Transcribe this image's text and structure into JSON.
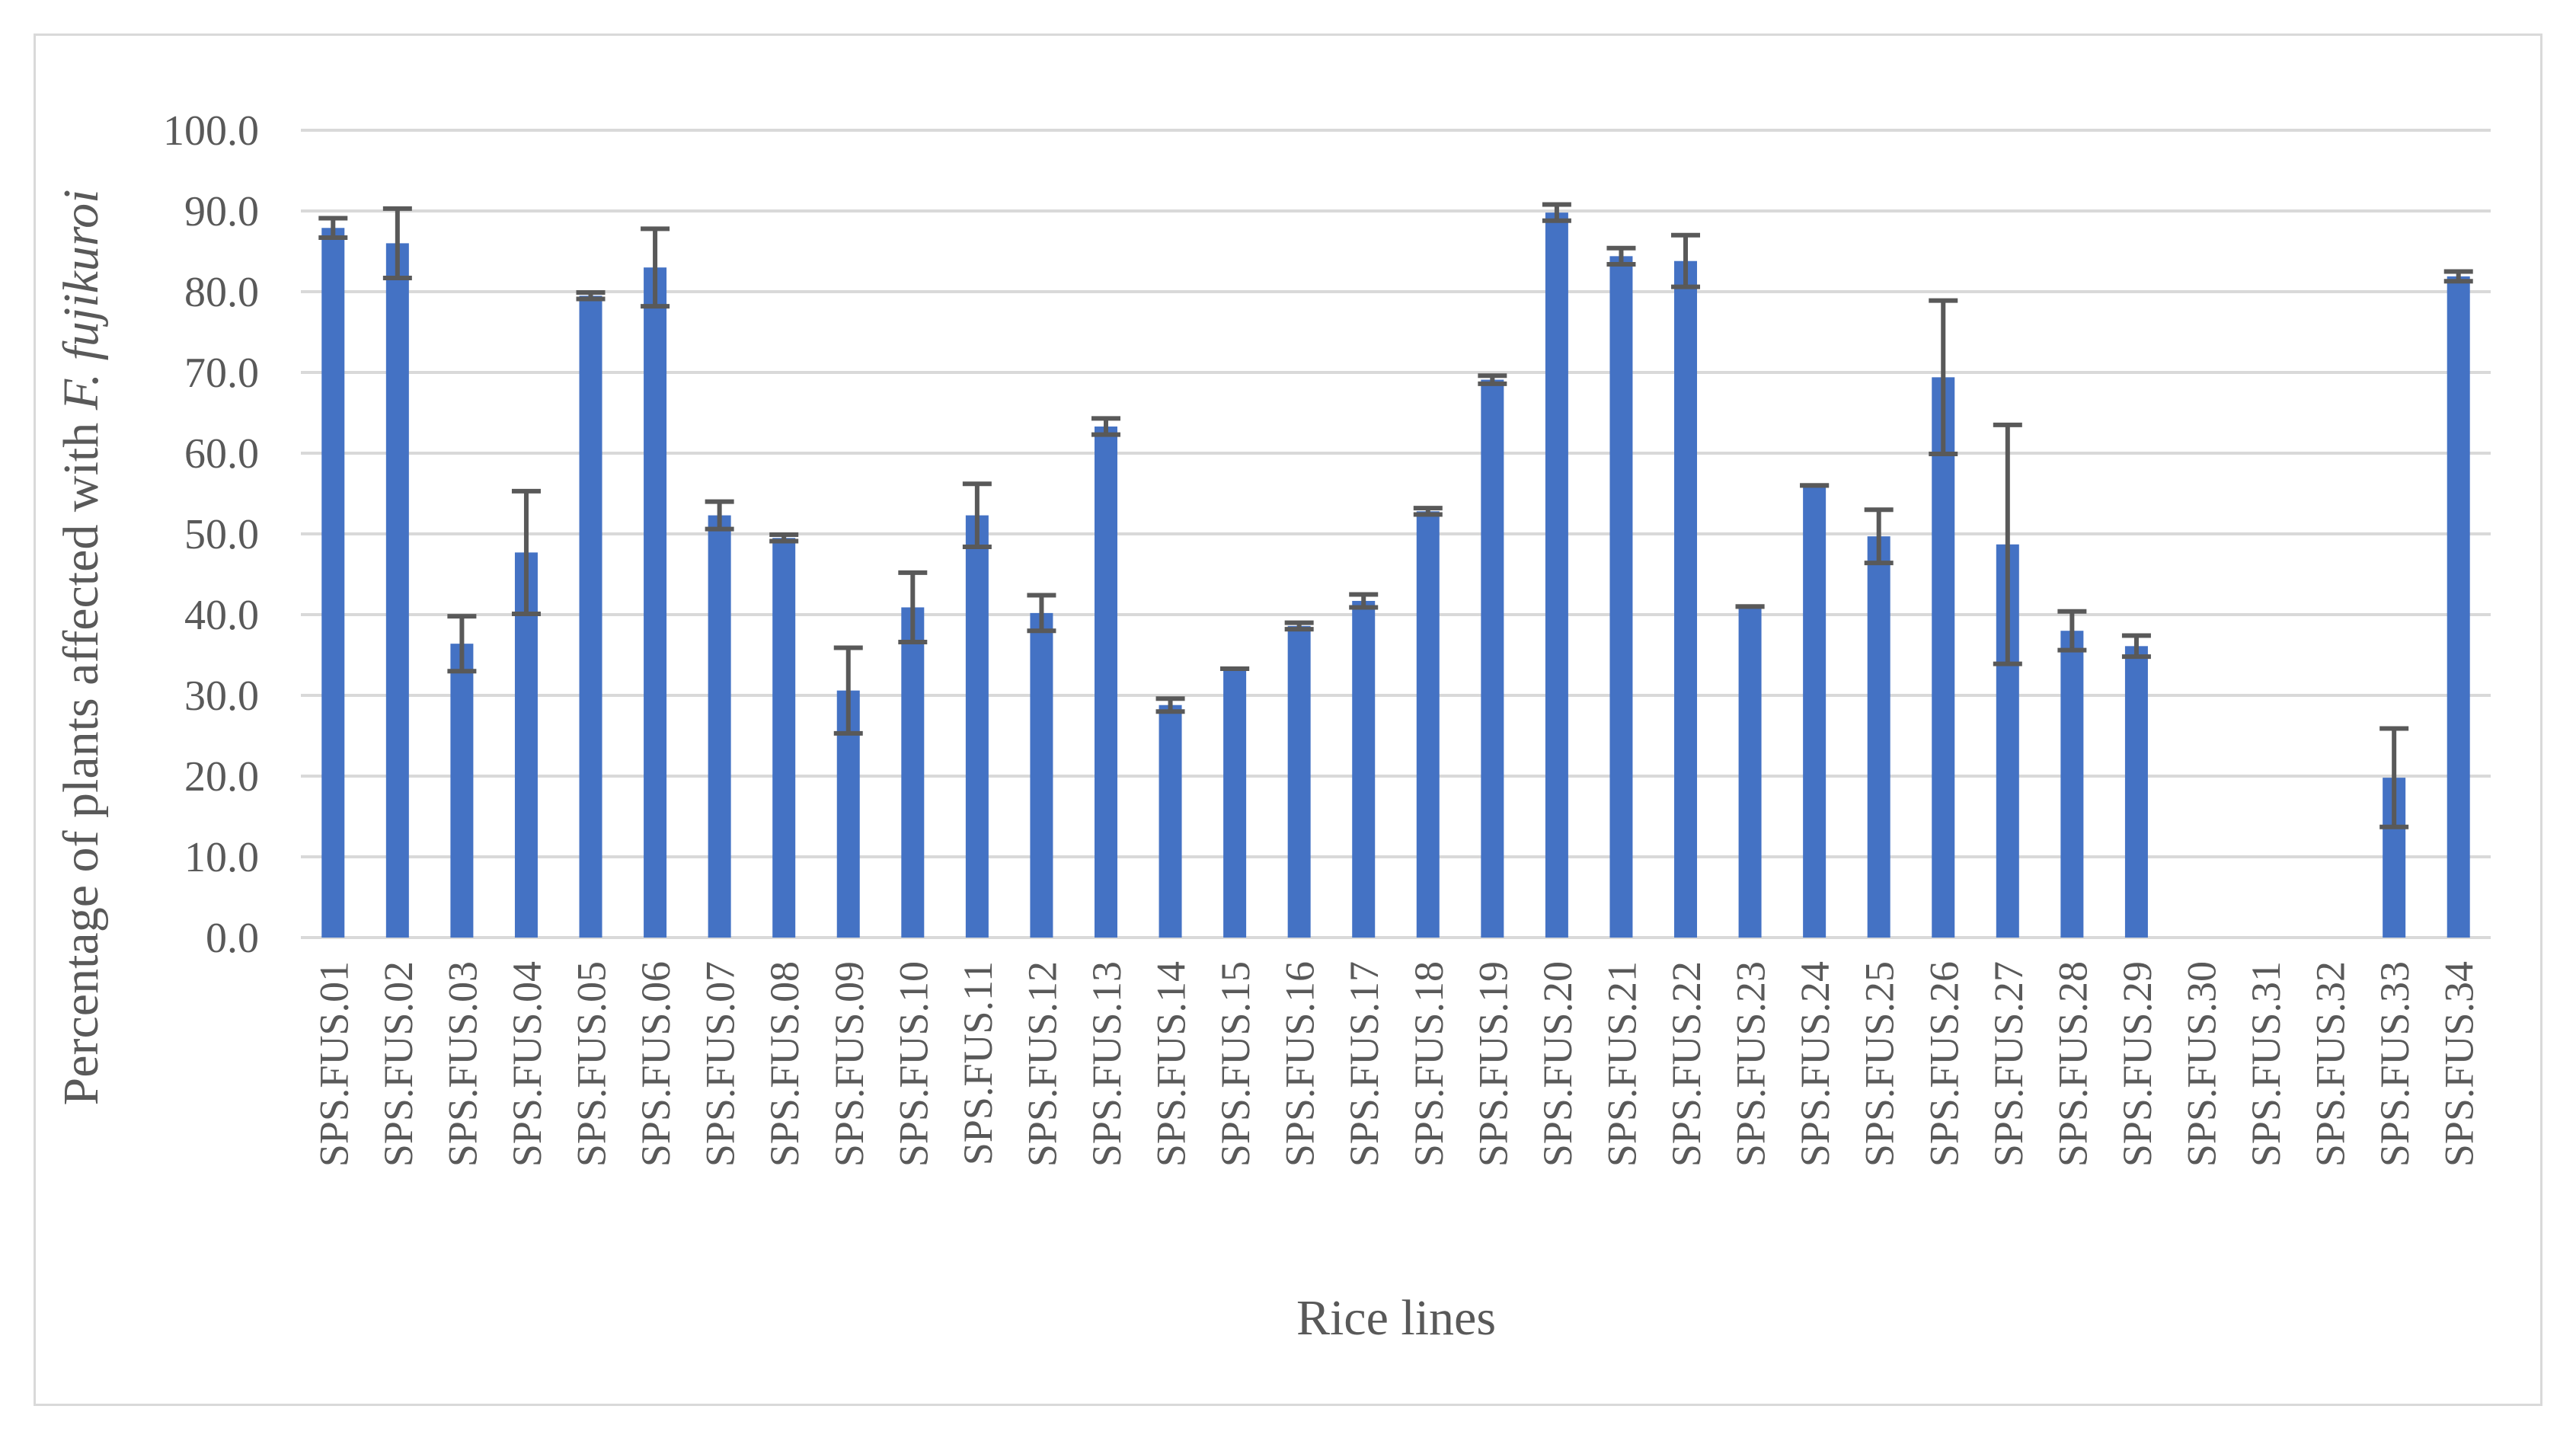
{
  "chart_data": {
    "type": "bar",
    "title": "",
    "xlabel": "Rice lines",
    "ylabel_prefix": "Percentage of plants affected with ",
    "ylabel_italic": "F. fujikuroi",
    "ylim": [
      0,
      100
    ],
    "yticks": [
      "0.0",
      "10.0",
      "20.0",
      "30.0",
      "40.0",
      "50.0",
      "60.0",
      "70.0",
      "80.0",
      "90.0",
      "100.0"
    ],
    "grid": true,
    "legend": "none",
    "bar_color": "#4472C4",
    "error_bar_color": "#595959",
    "categories": [
      "SPS.FUS.01",
      "SPS.FUS.02",
      "SPS.FUS.03",
      "SPS.FUS.04",
      "SPS.FUS.05",
      "SPS.FUS.06",
      "SPS.FUS.07",
      "SPS.FUS.08",
      "SPS.FUS.09",
      "SPS.FUS.10",
      "SPS.FUS.11",
      "SPS.FUS.12",
      "SPS.FUS.13",
      "SPS.FUS.14",
      "SPS.FUS.15",
      "SPS.FUS.16",
      "SPS.FUS.17",
      "SPS.FUS.18",
      "SPS.FUS.19",
      "SPS.FUS.20",
      "SPS.FUS.21",
      "SPS.FUS.22",
      "SPS.FUS.23",
      "SPS.FUS.24",
      "SPS.FUS.25",
      "SPS.FUS.26",
      "SPS.FUS.27",
      "SPS.FUS.28",
      "SPS.FUS.29",
      "SPS.FUS.30",
      "SPS.FUS.31",
      "SPS.FUS.32",
      "SPS.FUS.33",
      "SPS.FUS.34"
    ],
    "values": [
      87.9,
      86.0,
      36.4,
      47.7,
      79.5,
      83.0,
      52.3,
      49.5,
      30.6,
      40.9,
      52.3,
      40.2,
      63.3,
      28.8,
      33.3,
      38.6,
      41.7,
      52.8,
      69.1,
      89.8,
      84.4,
      83.8,
      41.0,
      56.0,
      49.7,
      69.4,
      48.7,
      38.0,
      36.1,
      0,
      0,
      0,
      19.8,
      81.9
    ],
    "errors": [
      1.2,
      4.3,
      3.4,
      7.6,
      0.4,
      4.8,
      1.7,
      0.4,
      5.3,
      4.3,
      3.9,
      2.2,
      1.0,
      0.8,
      0,
      0.4,
      0.8,
      0.4,
      0.5,
      1.0,
      1.0,
      3.2,
      0,
      0,
      3.3,
      9.5,
      14.8,
      2.4,
      1.3,
      0,
      0,
      0,
      6.1,
      0.6
    ]
  }
}
